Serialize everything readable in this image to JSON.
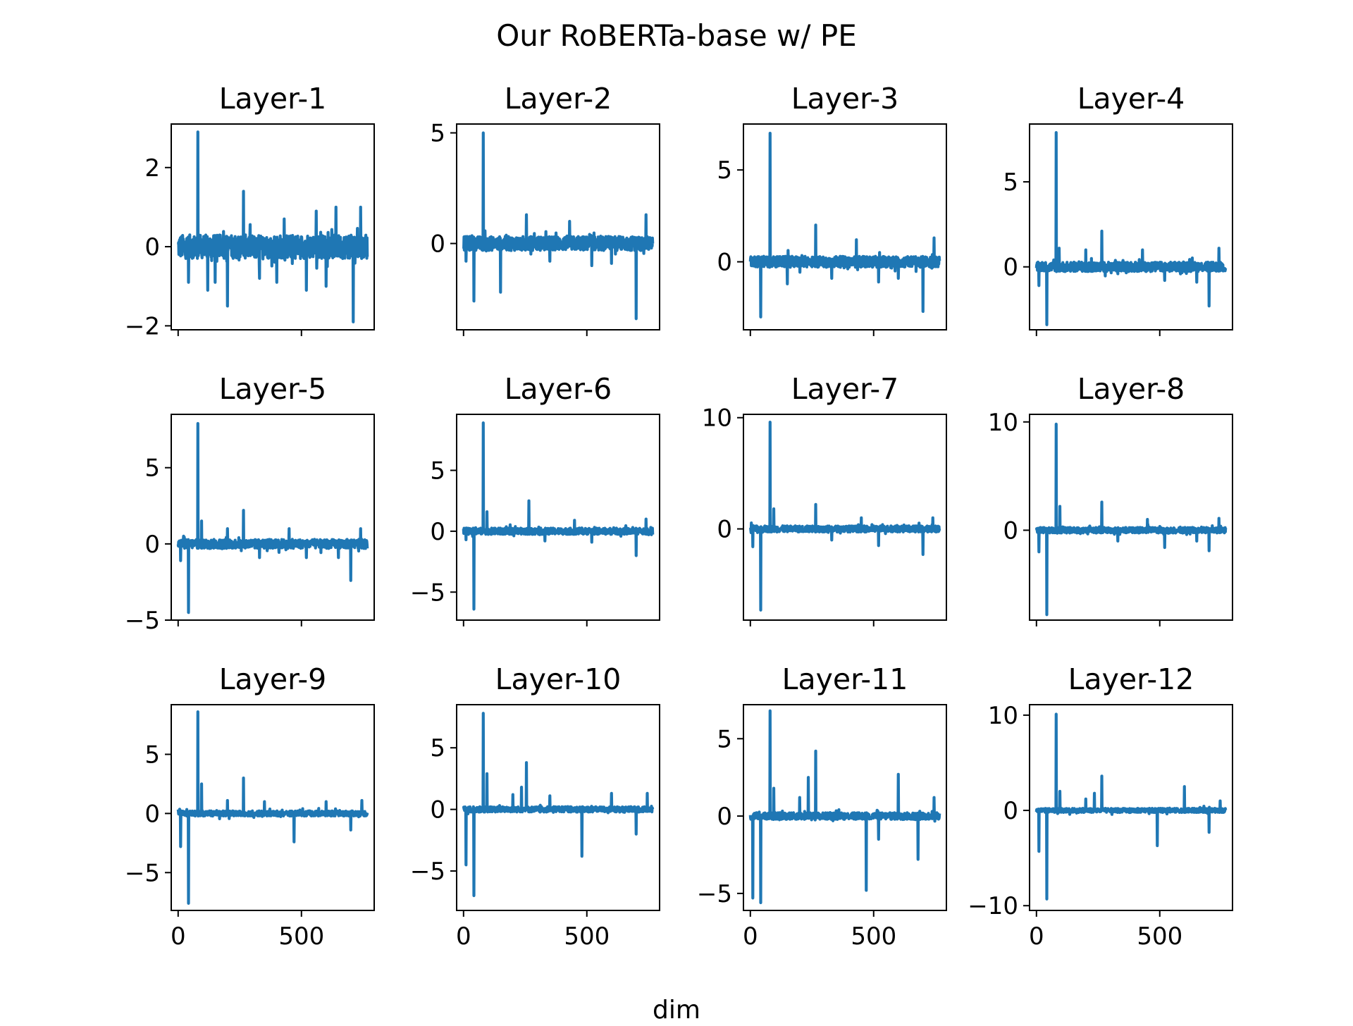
{
  "chart_data": {
    "type": "line",
    "title": "Our RoBERTa-base w/ PE",
    "xlabel": "dim",
    "ylabel": "",
    "grid": false,
    "line_color": "#1f77b4",
    "layout": "3x4 grid of subplots",
    "x_ticks": [
      0,
      500
    ],
    "xlim": [
      -28,
      795
    ],
    "subplots": [
      {
        "title": "Layer-1",
        "ylim": [
          -2.1,
          3.1
        ],
        "yticks": [
          -2,
          0,
          2
        ],
        "ytick_labels": [
          "−2",
          "0",
          "2"
        ],
        "base_noise": 0.3,
        "spikes": [
          [
            42,
            -0.9
          ],
          [
            80,
            2.9
          ],
          [
            120,
            -1.1
          ],
          [
            150,
            -0.9
          ],
          [
            200,
            -1.5
          ],
          [
            265,
            1.4
          ],
          [
            330,
            -0.8
          ],
          [
            400,
            -0.9
          ],
          [
            430,
            0.7
          ],
          [
            520,
            -1.1
          ],
          [
            560,
            0.9
          ],
          [
            600,
            -1.0
          ],
          [
            640,
            1.0
          ],
          [
            710,
            -1.9
          ],
          [
            740,
            1.0
          ]
        ]
      },
      {
        "title": "Layer-2",
        "ylim": [
          -3.9,
          5.4
        ],
        "yticks": [
          0,
          5
        ],
        "ytick_labels": [
          "0",
          "5"
        ],
        "base_noise": 0.32,
        "spikes": [
          [
            10,
            -0.8
          ],
          [
            42,
            -2.6
          ],
          [
            80,
            5.0
          ],
          [
            150,
            -2.2
          ],
          [
            255,
            1.3
          ],
          [
            350,
            -0.8
          ],
          [
            430,
            1.0
          ],
          [
            520,
            -1.0
          ],
          [
            600,
            -0.9
          ],
          [
            700,
            -3.4
          ],
          [
            740,
            1.3
          ]
        ]
      },
      {
        "title": "Layer-3",
        "ylim": [
          -3.7,
          7.5
        ],
        "yticks": [
          0,
          5
        ],
        "ytick_labels": [
          "0",
          "5"
        ],
        "base_noise": 0.3,
        "spikes": [
          [
            42,
            -3.0
          ],
          [
            80,
            7.0
          ],
          [
            150,
            -1.2
          ],
          [
            265,
            2.0
          ],
          [
            330,
            -0.9
          ],
          [
            430,
            1.2
          ],
          [
            520,
            -1.1
          ],
          [
            600,
            -0.9
          ],
          [
            700,
            -2.7
          ],
          [
            745,
            1.3
          ]
        ]
      },
      {
        "title": "Layer-4",
        "ylim": [
          -3.7,
          8.4
        ],
        "yticks": [
          0,
          5
        ],
        "ytick_labels": [
          "0",
          "5"
        ],
        "base_noise": 0.28,
        "spikes": [
          [
            10,
            -1.1
          ],
          [
            42,
            -3.4
          ],
          [
            80,
            7.9
          ],
          [
            92,
            1.1
          ],
          [
            200,
            1.0
          ],
          [
            265,
            2.1
          ],
          [
            430,
            1.0
          ],
          [
            520,
            -0.8
          ],
          [
            650,
            -0.9
          ],
          [
            700,
            -2.3
          ],
          [
            740,
            1.1
          ]
        ]
      },
      {
        "title": "Layer-5",
        "ylim": [
          -5.0,
          8.5
        ],
        "yticks": [
          -5,
          0,
          5
        ],
        "ytick_labels": [
          "−5",
          "0",
          "5"
        ],
        "base_noise": 0.3,
        "spikes": [
          [
            10,
            -1.1
          ],
          [
            42,
            -4.5
          ],
          [
            80,
            7.9
          ],
          [
            95,
            1.5
          ],
          [
            200,
            1.0
          ],
          [
            265,
            2.2
          ],
          [
            330,
            -0.9
          ],
          [
            450,
            1.0
          ],
          [
            520,
            -0.9
          ],
          [
            650,
            -0.9
          ],
          [
            700,
            -2.4
          ],
          [
            740,
            1.0
          ]
        ]
      },
      {
        "title": "Layer-6",
        "ylim": [
          -7.3,
          9.6
        ],
        "yticks": [
          -5,
          0,
          5
        ],
        "ytick_labels": [
          "−5",
          "0",
          "5"
        ],
        "base_noise": 0.26,
        "spikes": [
          [
            10,
            -0.7
          ],
          [
            42,
            -6.4
          ],
          [
            80,
            8.9
          ],
          [
            95,
            1.6
          ],
          [
            265,
            2.5
          ],
          [
            330,
            -0.8
          ],
          [
            450,
            0.9
          ],
          [
            520,
            -0.9
          ],
          [
            700,
            -2.0
          ],
          [
            740,
            1.0
          ]
        ]
      },
      {
        "title": "Layer-7",
        "ylim": [
          -8.2,
          10.3
        ],
        "yticks": [
          0,
          10
        ],
        "ytick_labels": [
          "0",
          "10"
        ],
        "base_noise": 0.28,
        "spikes": [
          [
            10,
            -1.6
          ],
          [
            42,
            -7.3
          ],
          [
            80,
            9.6
          ],
          [
            95,
            1.8
          ],
          [
            265,
            2.2
          ],
          [
            330,
            -1.0
          ],
          [
            450,
            1.0
          ],
          [
            520,
            -1.5
          ],
          [
            700,
            -2.3
          ],
          [
            740,
            1.0
          ]
        ]
      },
      {
        "title": "Layer-8",
        "ylim": [
          -8.3,
          10.7
        ],
        "yticks": [
          0,
          10
        ],
        "ytick_labels": [
          "0",
          "10"
        ],
        "base_noise": 0.26,
        "spikes": [
          [
            10,
            -2.0
          ],
          [
            42,
            -7.8
          ],
          [
            80,
            9.8
          ],
          [
            95,
            2.2
          ],
          [
            265,
            2.6
          ],
          [
            330,
            -1.0
          ],
          [
            450,
            1.0
          ],
          [
            520,
            -1.6
          ],
          [
            650,
            -1.0
          ],
          [
            700,
            -1.9
          ],
          [
            740,
            1.1
          ]
        ]
      },
      {
        "title": "Layer-9",
        "ylim": [
          -8.2,
          9.2
        ],
        "yticks": [
          -5,
          0,
          5
        ],
        "ytick_labels": [
          "−5",
          "0",
          "5"
        ],
        "base_noise": 0.22,
        "spikes": [
          [
            10,
            -2.8
          ],
          [
            42,
            -7.6
          ],
          [
            80,
            8.6
          ],
          [
            95,
            2.5
          ],
          [
            200,
            1.1
          ],
          [
            265,
            3.0
          ],
          [
            350,
            1.0
          ],
          [
            470,
            -2.4
          ],
          [
            600,
            1.0
          ],
          [
            700,
            -1.4
          ],
          [
            745,
            1.1
          ]
        ]
      },
      {
        "title": "Layer-10",
        "ylim": [
          -8.2,
          8.5
        ],
        "yticks": [
          -5,
          0,
          5
        ],
        "ytick_labels": [
          "−5",
          "0",
          "5"
        ],
        "base_noise": 0.22,
        "spikes": [
          [
            10,
            -4.5
          ],
          [
            42,
            -7.0
          ],
          [
            80,
            7.8
          ],
          [
            95,
            2.9
          ],
          [
            200,
            1.2
          ],
          [
            235,
            1.8
          ],
          [
            255,
            3.8
          ],
          [
            350,
            1.1
          ],
          [
            480,
            -3.8
          ],
          [
            600,
            1.3
          ],
          [
            700,
            -2.0
          ],
          [
            745,
            1.3
          ]
        ]
      },
      {
        "title": "Layer-11",
        "ylim": [
          -6.1,
          7.2
        ],
        "yticks": [
          -5,
          0,
          5
        ],
        "ytick_labels": [
          "−5",
          "0",
          "5"
        ],
        "base_noise": 0.22,
        "spikes": [
          [
            10,
            -5.3
          ],
          [
            42,
            -5.6
          ],
          [
            80,
            6.8
          ],
          [
            95,
            1.8
          ],
          [
            200,
            1.2
          ],
          [
            235,
            2.5
          ],
          [
            265,
            4.2
          ],
          [
            470,
            -4.8
          ],
          [
            520,
            -1.5
          ],
          [
            600,
            2.7
          ],
          [
            680,
            -2.8
          ],
          [
            745,
            1.2
          ]
        ]
      },
      {
        "title": "Layer-12",
        "ylim": [
          -10.5,
          11.1
        ],
        "yticks": [
          -10,
          0,
          10
        ],
        "ytick_labels": [
          "−10",
          "0",
          "10"
        ],
        "base_noise": 0.22,
        "spikes": [
          [
            10,
            -4.3
          ],
          [
            42,
            -9.3
          ],
          [
            80,
            10.1
          ],
          [
            95,
            2.0
          ],
          [
            200,
            1.2
          ],
          [
            235,
            1.8
          ],
          [
            265,
            3.6
          ],
          [
            490,
            -3.7
          ],
          [
            600,
            2.5
          ],
          [
            700,
            -2.3
          ],
          [
            745,
            1.0
          ]
        ]
      }
    ]
  }
}
